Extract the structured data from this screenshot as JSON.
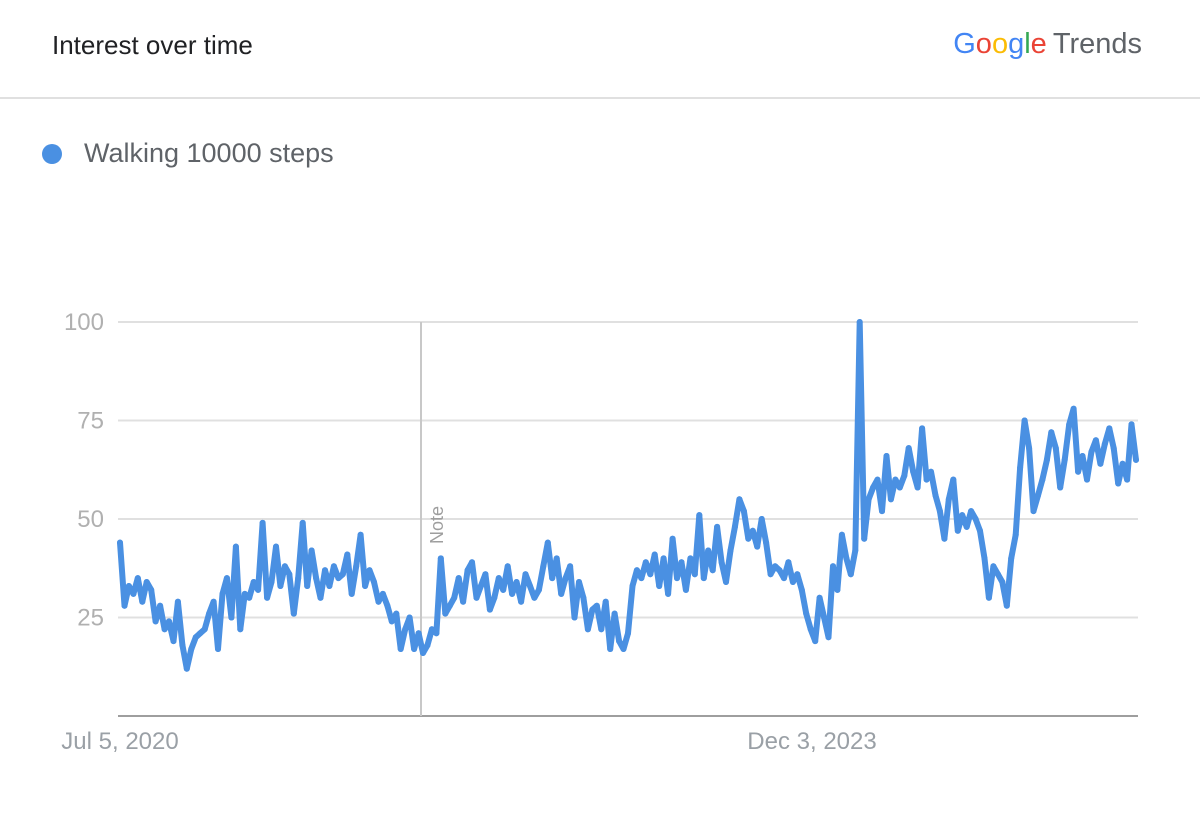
{
  "header": {
    "title": "Interest over time",
    "brand_letters": [
      "G",
      "o",
      "o",
      "g",
      "l",
      "e"
    ],
    "brand_suffix": "Trends"
  },
  "colors": {
    "series": "#4a90e2",
    "grid": "#e0e0e0",
    "axis": "#9e9e9e"
  },
  "chart_data": {
    "type": "line",
    "title": "Interest over time",
    "series": [
      {
        "name": "Walking 10000 steps",
        "values": [
          44,
          28,
          33,
          31,
          35,
          29,
          34,
          32,
          24,
          28,
          22,
          24,
          19,
          29,
          18,
          12,
          17,
          20,
          21,
          22,
          26,
          29,
          17,
          31,
          35,
          25,
          43,
          22,
          31,
          30,
          34,
          32,
          49,
          30,
          34,
          43,
          33,
          38,
          36,
          26,
          35,
          49,
          33,
          42,
          35,
          30,
          37,
          33,
          38,
          35,
          36,
          41,
          31,
          38,
          46,
          33,
          37,
          34,
          29,
          31,
          28,
          24,
          26,
          17,
          22,
          25,
          17,
          21,
          16,
          18,
          22,
          21,
          40,
          26,
          28,
          30,
          35,
          29,
          37,
          39,
          30,
          33,
          36,
          27,
          30,
          35,
          32,
          38,
          31,
          34,
          29,
          36,
          33,
          30,
          32,
          38,
          44,
          35,
          40,
          31,
          35,
          38,
          25,
          34,
          30,
          22,
          27,
          28,
          22,
          29,
          17,
          26,
          19,
          17,
          21,
          33,
          37,
          35,
          39,
          36,
          41,
          33,
          40,
          31,
          45,
          35,
          39,
          32,
          40,
          36,
          51,
          35,
          42,
          37,
          48,
          39,
          34,
          42,
          48,
          55,
          52,
          45,
          47,
          43,
          50,
          44,
          36,
          38,
          37,
          35,
          39,
          34,
          36,
          32,
          26,
          22,
          19,
          30,
          25,
          20,
          38,
          32,
          46,
          40,
          36,
          42,
          100,
          45,
          55,
          58,
          60,
          52,
          66,
          55,
          60,
          58,
          61,
          68,
          62,
          58,
          73,
          60,
          62,
          56,
          52,
          45,
          55,
          60,
          47,
          51,
          48,
          52,
          50,
          47,
          40,
          30,
          38,
          36,
          34,
          28,
          40,
          46,
          63,
          75,
          68,
          52,
          56,
          60,
          65,
          72,
          68,
          58,
          65,
          74,
          78,
          62,
          66,
          60,
          67,
          70,
          64,
          69,
          73,
          68,
          59,
          64,
          60,
          74,
          65
        ]
      }
    ],
    "ylim": [
      0,
      100
    ],
    "yticks": [
      25,
      50,
      75,
      100
    ],
    "xtick_labels": [
      "Jul 5, 2020",
      "Dec 3, 2023"
    ],
    "annotation": "Note",
    "grid": true
  }
}
